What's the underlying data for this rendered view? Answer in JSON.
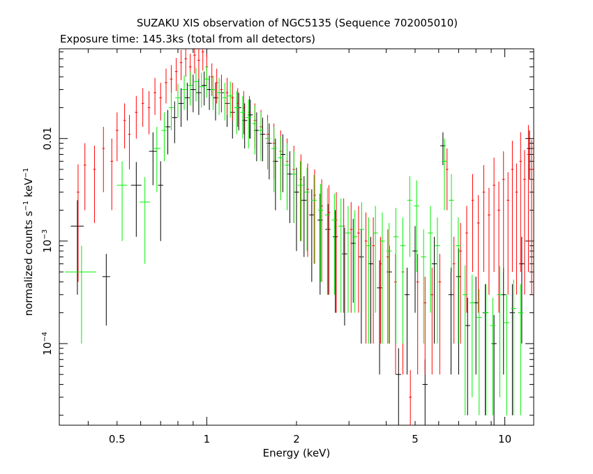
{
  "title": "SUZAKU XIS observation of NGC5135 (Sequence 702005010)",
  "subtitle": "Exposure time: 145.3ks (total from all detectors)",
  "chart_data": {
    "type": "scatter",
    "xlabel": "Energy (keV)",
    "ylabel": "normalized counts s",
    "ylabel_unit_mid": " keV",
    "ylabel_exp": "−1",
    "xscale": "log",
    "yscale": "log",
    "xlim": [
      0.32,
      12.5
    ],
    "ylim": [
      1.6e-05,
      0.075
    ],
    "x_ticks": [
      {
        "value": 0.5,
        "label": "0.5"
      },
      {
        "value": 1,
        "label": "1"
      },
      {
        "value": 2,
        "label": "2"
      },
      {
        "value": 5,
        "label": "5"
      },
      {
        "value": 10,
        "label": "10"
      }
    ],
    "y_ticks": [
      {
        "value": 0.01,
        "label": "0.01",
        "exp": ""
      },
      {
        "value": 0.001,
        "label": "10",
        "exp": "−3"
      },
      {
        "value": 0.0001,
        "label": "10",
        "exp": "−4"
      }
    ],
    "series": [
      {
        "color": "#000000",
        "points": [
          [
            0.368,
            0.0014,
            0.05,
            0.0011
          ],
          [
            0.46,
            0.00045,
            0.03,
            0.0003
          ],
          [
            0.58,
            0.0035,
            0.04,
            0.0024
          ],
          [
            0.66,
            0.0075,
            0.03,
            0.004
          ],
          [
            0.7,
            0.0035,
            0.02,
            0.0025
          ],
          [
            0.74,
            0.013,
            0.02,
            0.006
          ],
          [
            0.78,
            0.016,
            0.02,
            0.007
          ],
          [
            0.82,
            0.022,
            0.02,
            0.009
          ],
          [
            0.86,
            0.025,
            0.02,
            0.01
          ],
          [
            0.9,
            0.03,
            0.02,
            0.012
          ],
          [
            0.94,
            0.028,
            0.02,
            0.011
          ],
          [
            0.98,
            0.033,
            0.02,
            0.012
          ],
          [
            1.02,
            0.03,
            0.02,
            0.011
          ],
          [
            1.07,
            0.025,
            0.02,
            0.01
          ],
          [
            1.12,
            0.028,
            0.02,
            0.01
          ],
          [
            1.17,
            0.022,
            0.02,
            0.009
          ],
          [
            1.22,
            0.018,
            0.02,
            0.008
          ],
          [
            1.28,
            0.02,
            0.02,
            0.008
          ],
          [
            1.34,
            0.015,
            0.02,
            0.007
          ],
          [
            1.4,
            0.017,
            0.02,
            0.007
          ],
          [
            1.47,
            0.012,
            0.02,
            0.006
          ],
          [
            1.54,
            0.011,
            0.02,
            0.005
          ],
          [
            1.62,
            0.009,
            0.02,
            0.005
          ],
          [
            1.7,
            0.006,
            0.02,
            0.004
          ],
          [
            1.8,
            0.007,
            0.02,
            0.004
          ],
          [
            1.9,
            0.0045,
            0.02,
            0.003
          ],
          [
            2.0,
            0.003,
            0.02,
            0.0022
          ],
          [
            2.12,
            0.0025,
            0.02,
            0.0018
          ],
          [
            2.25,
            0.0018,
            0.02,
            0.0014
          ],
          [
            2.4,
            0.0016,
            0.02,
            0.0013
          ],
          [
            2.55,
            0.0013,
            0.02,
            0.001
          ],
          [
            2.7,
            0.0011,
            0.02,
            0.0009
          ],
          [
            2.9,
            0.00075,
            0.02,
            0.0006
          ],
          [
            3.1,
            0.00095,
            0.02,
            0.0007
          ],
          [
            3.3,
            0.0007,
            0.02,
            0.0006
          ],
          [
            3.55,
            0.0006,
            0.02,
            0.0005
          ],
          [
            3.8,
            0.00035,
            0.02,
            0.0003
          ],
          [
            4.1,
            0.0005,
            0.02,
            0.0004
          ],
          [
            4.4,
            5e-05,
            0.02,
            4e-05
          ],
          [
            4.7,
            0.0003,
            0.02,
            0.00025
          ],
          [
            5.0,
            0.0008,
            0.02,
            0.0006
          ],
          [
            5.4,
            4e-05,
            0.02,
            3e-05
          ],
          [
            5.8,
            0.0006,
            0.02,
            0.0005
          ],
          [
            6.2,
            0.0085,
            0.02,
            0.003
          ],
          [
            6.6,
            0.0003,
            0.02,
            0.00025
          ],
          [
            7.0,
            0.00045,
            0.02,
            0.0004
          ],
          [
            7.5,
            0.00015,
            0.02,
            0.00013
          ],
          [
            8.0,
            0.00025,
            0.02,
            0.0002
          ],
          [
            8.6,
            0.0002,
            0.02,
            0.00018
          ],
          [
            9.2,
            0.0001,
            0.02,
            9e-05
          ],
          [
            9.9,
            0.0003,
            0.02,
            0.00025
          ],
          [
            10.6,
            0.0002,
            0.02,
            0.00018
          ],
          [
            11.4,
            0.0006,
            0.02,
            0.0005
          ],
          [
            12.1,
            0.008,
            0.02,
            0.004
          ]
        ]
      },
      {
        "color": "#ff0000",
        "points": [
          [
            0.37,
            0.003,
            0.01,
            0.0026
          ],
          [
            0.39,
            0.0055,
            0.01,
            0.0035
          ],
          [
            0.42,
            0.005,
            0.01,
            0.0035
          ],
          [
            0.45,
            0.008,
            0.01,
            0.005
          ],
          [
            0.48,
            0.006,
            0.01,
            0.004
          ],
          [
            0.5,
            0.012,
            0.01,
            0.006
          ],
          [
            0.53,
            0.015,
            0.01,
            0.007
          ],
          [
            0.55,
            0.011,
            0.01,
            0.006
          ],
          [
            0.58,
            0.018,
            0.01,
            0.008
          ],
          [
            0.61,
            0.022,
            0.01,
            0.009
          ],
          [
            0.64,
            0.02,
            0.01,
            0.009
          ],
          [
            0.67,
            0.028,
            0.01,
            0.011
          ],
          [
            0.7,
            0.025,
            0.01,
            0.01
          ],
          [
            0.73,
            0.035,
            0.01,
            0.013
          ],
          [
            0.76,
            0.038,
            0.01,
            0.014
          ],
          [
            0.79,
            0.045,
            0.01,
            0.016
          ],
          [
            0.82,
            0.055,
            0.01,
            0.018
          ],
          [
            0.85,
            0.06,
            0.01,
            0.02
          ],
          [
            0.88,
            0.05,
            0.01,
            0.017
          ],
          [
            0.91,
            0.065,
            0.01,
            0.022
          ],
          [
            0.94,
            0.058,
            0.01,
            0.02
          ],
          [
            0.97,
            0.07,
            0.01,
            0.024
          ],
          [
            1.0,
            0.05,
            0.01,
            0.017
          ],
          [
            1.04,
            0.04,
            0.01,
            0.014
          ],
          [
            1.08,
            0.035,
            0.01,
            0.013
          ],
          [
            1.12,
            0.03,
            0.01,
            0.012
          ],
          [
            1.17,
            0.028,
            0.01,
            0.011
          ],
          [
            1.22,
            0.025,
            0.01,
            0.01
          ],
          [
            1.27,
            0.022,
            0.01,
            0.009
          ],
          [
            1.33,
            0.02,
            0.01,
            0.009
          ],
          [
            1.39,
            0.018,
            0.01,
            0.008
          ],
          [
            1.45,
            0.015,
            0.01,
            0.007
          ],
          [
            1.52,
            0.013,
            0.01,
            0.006
          ],
          [
            1.6,
            0.011,
            0.01,
            0.006
          ],
          [
            1.68,
            0.009,
            0.01,
            0.005
          ],
          [
            1.77,
            0.0075,
            0.01,
            0.0045
          ],
          [
            1.86,
            0.006,
            0.01,
            0.004
          ],
          [
            1.96,
            0.005,
            0.01,
            0.0035
          ],
          [
            2.07,
            0.004,
            0.01,
            0.003
          ],
          [
            2.18,
            0.0032,
            0.01,
            0.0025
          ],
          [
            2.3,
            0.0028,
            0.01,
            0.0022
          ],
          [
            2.43,
            0.0022,
            0.01,
            0.0018
          ],
          [
            2.57,
            0.0019,
            0.01,
            0.0016
          ],
          [
            2.72,
            0.0016,
            0.01,
            0.0014
          ],
          [
            2.88,
            0.0014,
            0.01,
            0.0012
          ],
          [
            3.05,
            0.0013,
            0.01,
            0.0011
          ],
          [
            3.23,
            0.0012,
            0.01,
            0.001
          ],
          [
            3.42,
            0.001,
            0.01,
            0.0009
          ],
          [
            3.62,
            0.0009,
            0.01,
            0.0008
          ],
          [
            3.83,
            0.0006,
            0.01,
            0.0005
          ],
          [
            4.05,
            0.0007,
            0.01,
            0.0006
          ],
          [
            4.3,
            0.0004,
            0.01,
            0.00035
          ],
          [
            4.55,
            0.0005,
            0.01,
            0.00045
          ],
          [
            4.82,
            3e-05,
            0.01,
            2.5e-05
          ],
          [
            5.1,
            0.0004,
            0.01,
            0.00035
          ],
          [
            5.4,
            0.00025,
            0.01,
            0.0002
          ],
          [
            5.7,
            0.0003,
            0.01,
            0.00025
          ],
          [
            6.05,
            0.0004,
            0.01,
            0.00035
          ],
          [
            6.4,
            0.005,
            0.01,
            0.003
          ],
          [
            6.75,
            0.0006,
            0.01,
            0.0005
          ],
          [
            7.1,
            0.0008,
            0.01,
            0.0007
          ],
          [
            7.45,
            0.0012,
            0.01,
            0.001
          ],
          [
            7.8,
            0.0025,
            0.01,
            0.002
          ],
          [
            8.15,
            0.0015,
            0.01,
            0.0013
          ],
          [
            8.5,
            0.003,
            0.01,
            0.0025
          ],
          [
            8.85,
            0.0018,
            0.01,
            0.0015
          ],
          [
            9.2,
            0.0035,
            0.01,
            0.003
          ],
          [
            9.55,
            0.002,
            0.01,
            0.0018
          ],
          [
            9.9,
            0.004,
            0.01,
            0.0035
          ],
          [
            10.25,
            0.0025,
            0.01,
            0.0022
          ],
          [
            10.6,
            0.005,
            0.01,
            0.0045
          ],
          [
            10.95,
            0.003,
            0.01,
            0.0027
          ],
          [
            11.3,
            0.006,
            0.01,
            0.0055
          ],
          [
            11.65,
            0.004,
            0.01,
            0.0037
          ],
          [
            12.0,
            0.007,
            0.01,
            0.0065
          ],
          [
            12.3,
            0.005,
            0.01,
            0.0047
          ]
        ]
      },
      {
        "color": "#00ee00",
        "points": [
          [
            0.38,
            0.0005,
            0.12,
            0.0004
          ],
          [
            0.52,
            0.0035,
            0.04,
            0.0025
          ],
          [
            0.62,
            0.0024,
            0.04,
            0.0018
          ],
          [
            0.68,
            0.008,
            0.03,
            0.005
          ],
          [
            0.72,
            0.012,
            0.02,
            0.006
          ],
          [
            0.76,
            0.02,
            0.02,
            0.008
          ],
          [
            0.8,
            0.025,
            0.02,
            0.009
          ],
          [
            0.84,
            0.03,
            0.02,
            0.011
          ],
          [
            0.88,
            0.033,
            0.02,
            0.012
          ],
          [
            0.92,
            0.036,
            0.02,
            0.013
          ],
          [
            0.96,
            0.032,
            0.02,
            0.012
          ],
          [
            1.0,
            0.038,
            0.02,
            0.013
          ],
          [
            1.05,
            0.03,
            0.02,
            0.011
          ],
          [
            1.1,
            0.028,
            0.02,
            0.011
          ],
          [
            1.15,
            0.025,
            0.02,
            0.01
          ],
          [
            1.2,
            0.026,
            0.02,
            0.01
          ],
          [
            1.26,
            0.02,
            0.02,
            0.009
          ],
          [
            1.32,
            0.018,
            0.02,
            0.008
          ],
          [
            1.38,
            0.016,
            0.02,
            0.008
          ],
          [
            1.45,
            0.014,
            0.02,
            0.007
          ],
          [
            1.52,
            0.012,
            0.02,
            0.006
          ],
          [
            1.6,
            0.01,
            0.02,
            0.005
          ],
          [
            1.68,
            0.008,
            0.02,
            0.005
          ],
          [
            1.77,
            0.0065,
            0.02,
            0.004
          ],
          [
            1.86,
            0.0055,
            0.02,
            0.0035
          ],
          [
            1.96,
            0.0045,
            0.02,
            0.003
          ],
          [
            2.06,
            0.0035,
            0.02,
            0.0025
          ],
          [
            2.17,
            0.003,
            0.02,
            0.0022
          ],
          [
            2.29,
            0.0025,
            0.02,
            0.0019
          ],
          [
            2.41,
            0.002,
            0.02,
            0.0016
          ],
          [
            2.54,
            0.0018,
            0.02,
            0.0015
          ],
          [
            2.68,
            0.0016,
            0.02,
            0.0013
          ],
          [
            2.82,
            0.0014,
            0.02,
            0.0012
          ],
          [
            2.98,
            0.0012,
            0.02,
            0.001
          ],
          [
            3.14,
            0.0011,
            0.02,
            0.0009
          ],
          [
            3.31,
            0.0013,
            0.02,
            0.0011
          ],
          [
            3.49,
            0.0009,
            0.02,
            0.0008
          ],
          [
            3.68,
            0.0012,
            0.02,
            0.001
          ],
          [
            3.88,
            0.001,
            0.02,
            0.0009
          ],
          [
            4.09,
            0.0008,
            0.02,
            0.0007
          ],
          [
            4.31,
            0.0011,
            0.02,
            0.001
          ],
          [
            4.55,
            0.0009,
            0.02,
            0.0008
          ],
          [
            4.8,
            0.0025,
            0.02,
            0.0018
          ],
          [
            5.06,
            0.0022,
            0.02,
            0.0017
          ],
          [
            5.34,
            0.0007,
            0.02,
            0.0006
          ],
          [
            5.63,
            0.0012,
            0.02,
            0.001
          ],
          [
            5.94,
            0.0009,
            0.02,
            0.0008
          ],
          [
            6.27,
            0.006,
            0.02,
            0.004
          ],
          [
            6.62,
            0.0025,
            0.02,
            0.002
          ],
          [
            6.98,
            0.0009,
            0.02,
            0.0008
          ],
          [
            7.36,
            0.0003,
            0.02,
            0.00028
          ],
          [
            7.77,
            0.00025,
            0.02,
            0.00022
          ],
          [
            8.2,
            0.00018,
            0.02,
            0.00016
          ],
          [
            8.65,
            0.0002,
            0.02,
            0.00018
          ],
          [
            9.12,
            0.00015,
            0.02,
            0.00013
          ],
          [
            9.62,
            0.0003,
            0.02,
            0.00027
          ],
          [
            10.15,
            0.00016,
            0.02,
            0.00014
          ],
          [
            10.7,
            0.00022,
            0.02,
            0.0002
          ],
          [
            11.3,
            0.0002,
            0.02,
            0.00018
          ]
        ]
      }
    ]
  }
}
